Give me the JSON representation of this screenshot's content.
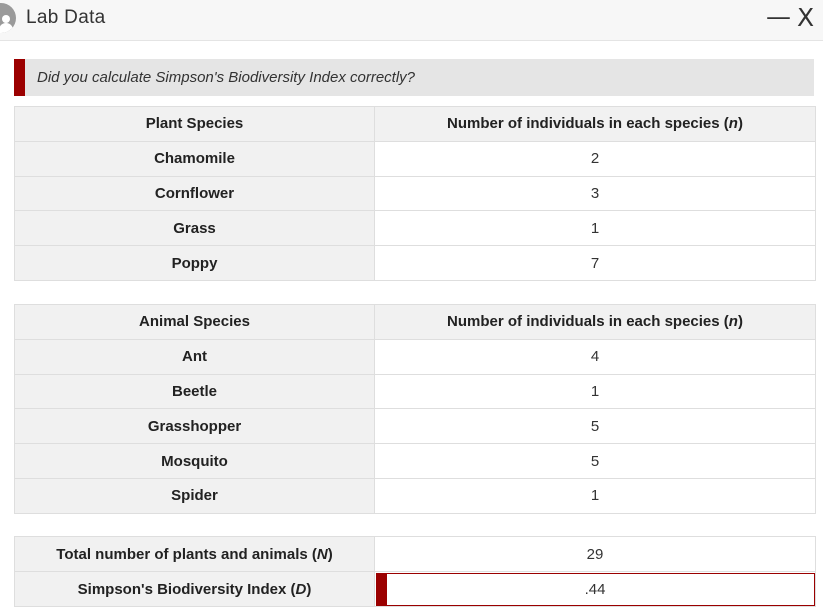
{
  "window": {
    "title": "Lab Data",
    "minimize_label": "—",
    "close_label": "X",
    "app_icon": "user-avatar-icon"
  },
  "banner": {
    "text": "Did you calculate Simpson's Biodiversity Index correctly?",
    "accent_color": "#9b0000"
  },
  "plants": {
    "headers": [
      "Plant Species",
      "Number of individuals in each species (",
      "n",
      ")"
    ],
    "rows": [
      {
        "name": "Chamomile",
        "count": "2"
      },
      {
        "name": "Cornflower",
        "count": "3"
      },
      {
        "name": "Grass",
        "count": "1"
      },
      {
        "name": "Poppy",
        "count": "7"
      }
    ]
  },
  "animals": {
    "headers": [
      "Animal Species",
      "Number of individuals in each species (",
      "n",
      ")"
    ],
    "rows": [
      {
        "name": "Ant",
        "count": "4"
      },
      {
        "name": "Beetle",
        "count": "1"
      },
      {
        "name": "Grasshopper",
        "count": "5"
      },
      {
        "name": "Mosquito",
        "count": "5"
      },
      {
        "name": "Spider",
        "count": "1"
      }
    ]
  },
  "totals": {
    "total_label": "Total number of plants and animals (",
    "total_symbol": "N",
    "total_close": ")",
    "total_value": "29",
    "index_label": "Simpson's Biodiversity Index (",
    "index_symbol": "D",
    "index_close": ")",
    "index_value": ".44"
  }
}
